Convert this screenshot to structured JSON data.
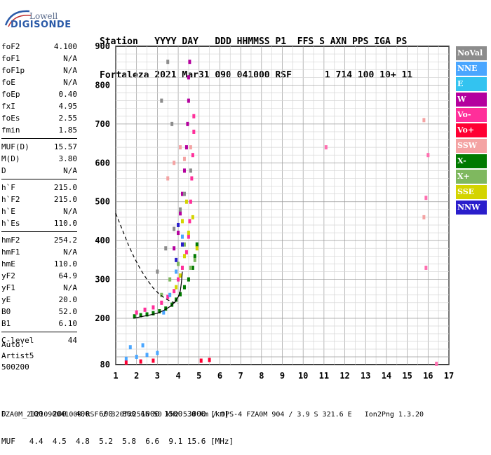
{
  "logo": {
    "line1": "Lowell",
    "line2": "DIGISONDE"
  },
  "header": {
    "row1": "Station   YYYY DAY   DDD HHMMSS P1  FFS S AXN PPS IGA PS",
    "row2": "Fortaleza 2021 Mar31 090 041000 RSF      1 714 100 10+ 11"
  },
  "params": [
    [
      {
        "name": "foF2",
        "value": "4.100"
      },
      {
        "name": "foF1",
        "value": "N/A"
      },
      {
        "name": "foF1p",
        "value": "N/A"
      },
      {
        "name": "foE",
        "value": "N/A"
      },
      {
        "name": "foEp",
        "value": "0.40"
      },
      {
        "name": "fxI",
        "value": "4.95"
      },
      {
        "name": "foEs",
        "value": "2.55"
      },
      {
        "name": "fmin",
        "value": "1.85"
      }
    ],
    [
      {
        "name": "MUF(D)",
        "value": "15.57"
      },
      {
        "name": "M(D)",
        "value": "3.80"
      },
      {
        "name": "D",
        "value": "N/A"
      }
    ],
    [
      {
        "name": "h`F",
        "value": "215.0"
      },
      {
        "name": "h`F2",
        "value": "215.0"
      },
      {
        "name": "h`E",
        "value": "N/A"
      },
      {
        "name": "h`Es",
        "value": "110.0"
      }
    ],
    [
      {
        "name": "hmF2",
        "value": "254.2"
      },
      {
        "name": "hmF1",
        "value": "N/A"
      },
      {
        "name": "hmE",
        "value": "110.0"
      },
      {
        "name": "yF2",
        "value": "64.9"
      },
      {
        "name": "yF1",
        "value": "N/A"
      },
      {
        "name": "yE",
        "value": "20.0"
      },
      {
        "name": "B0",
        "value": "52.0"
      },
      {
        "name": "B1",
        "value": "6.10"
      }
    ],
    [
      {
        "name": "C-level",
        "value": "44"
      }
    ]
  ],
  "auto": {
    "line1": "Auto:",
    "line2": "Artist5",
    "line3": "500200"
  },
  "footer": {
    "d_row": "D     100  200  400  600  800 1000 1500 3000 [km]",
    "muf_row": "MUF   4.4  4.5  4.8  5.2  5.8  6.6  9.1 15.6 [MHz]",
    "info": "FZA0M_2021090041000.RSF / 320fx256h 50 kHz 5.0 km / DPS-4 FZA0M 904 / 3.9 S 321.6 E   Ion2Png 1.3.20"
  },
  "legend": [
    {
      "label": "NoVal",
      "color": "#8c8c8c"
    },
    {
      "label": "NNE",
      "color": "#4aa6ff"
    },
    {
      "label": "E",
      "color": "#33c3f0"
    },
    {
      "label": "W",
      "color": "#b4009e"
    },
    {
      "label": "Vo-",
      "color": "#ff2f9a"
    },
    {
      "label": "Vo+",
      "color": "#ff0033"
    },
    {
      "label": "SSW",
      "color": "#f4a3a3"
    },
    {
      "label": "X-",
      "color": "#007a00"
    },
    {
      "label": "X+",
      "color": "#7fb85f"
    },
    {
      "label": "SSE",
      "color": "#d4d400"
    },
    {
      "label": "NNW",
      "color": "#2a1ecb"
    }
  ],
  "chart_data": {
    "type": "scatter",
    "xlabel": "",
    "ylabel": "",
    "xlim": [
      1,
      17
    ],
    "ylim": [
      80,
      900
    ],
    "x_ticks": [
      1,
      2,
      3,
      4,
      5,
      6,
      7,
      8,
      9,
      10,
      11,
      12,
      13,
      14,
      15,
      16,
      17
    ],
    "y_ticks": [
      80,
      200,
      300,
      400,
      500,
      600,
      700,
      800,
      900
    ],
    "grid": true,
    "series": [
      {
        "name": "X-",
        "points": [
          [
            1.9,
            205
          ],
          [
            2.2,
            208
          ],
          [
            2.5,
            210
          ],
          [
            2.8,
            213
          ],
          [
            3.1,
            218
          ],
          [
            3.4,
            225
          ],
          [
            3.7,
            235
          ],
          [
            3.9,
            248
          ],
          [
            4.1,
            262
          ],
          [
            4.3,
            280
          ],
          [
            4.5,
            300
          ],
          [
            4.7,
            330
          ],
          [
            4.8,
            360
          ],
          [
            4.9,
            390
          ]
        ]
      },
      {
        "name": "Vo-",
        "points": [
          [
            2.0,
            215
          ],
          [
            2.4,
            222
          ],
          [
            2.8,
            228
          ],
          [
            3.2,
            240
          ],
          [
            3.5,
            255
          ],
          [
            3.8,
            270
          ],
          [
            4.0,
            300
          ],
          [
            4.2,
            330
          ],
          [
            4.4,
            370
          ],
          [
            4.5,
            410
          ],
          [
            4.55,
            450
          ],
          [
            4.6,
            500
          ],
          [
            4.65,
            560
          ],
          [
            4.7,
            620
          ],
          [
            4.75,
            680
          ],
          [
            4.75,
            720
          ]
        ]
      },
      {
        "name": "W",
        "points": [
          [
            3.8,
            380
          ],
          [
            4.0,
            420
          ],
          [
            4.1,
            470
          ],
          [
            4.2,
            520
          ],
          [
            4.3,
            580
          ],
          [
            4.4,
            640
          ],
          [
            4.45,
            700
          ],
          [
            4.5,
            760
          ],
          [
            4.5,
            820
          ],
          [
            4.55,
            860
          ]
        ]
      },
      {
        "name": "NNE",
        "points": [
          [
            1.5,
            95
          ],
          [
            2.0,
            100
          ],
          [
            2.5,
            105
          ],
          [
            3.0,
            110
          ],
          [
            1.7,
            125
          ],
          [
            2.3,
            130
          ],
          [
            3.3,
            215
          ],
          [
            3.6,
            260
          ],
          [
            3.9,
            320
          ],
          [
            4.2,
            410
          ]
        ]
      },
      {
        "name": "SSE",
        "points": [
          [
            3.9,
            280
          ],
          [
            4.1,
            310
          ],
          [
            4.3,
            360
          ],
          [
            4.5,
            420
          ],
          [
            4.7,
            460
          ],
          [
            4.9,
            380
          ],
          [
            4.2,
            450
          ],
          [
            4.4,
            500
          ]
        ]
      },
      {
        "name": "X+",
        "points": [
          [
            3.2,
            260
          ],
          [
            3.6,
            300
          ],
          [
            4.0,
            340
          ],
          [
            4.3,
            390
          ],
          [
            4.6,
            330
          ],
          [
            4.8,
            350
          ]
        ]
      },
      {
        "name": "SSW",
        "points": [
          [
            3.5,
            560
          ],
          [
            3.8,
            600
          ],
          [
            4.1,
            640
          ],
          [
            4.3,
            610
          ],
          [
            4.6,
            640
          ],
          [
            15.8,
            460
          ],
          [
            15.8,
            710
          ]
        ]
      },
      {
        "name": "NoVal",
        "points": [
          [
            3.0,
            320
          ],
          [
            3.4,
            380
          ],
          [
            3.8,
            430
          ],
          [
            4.1,
            480
          ],
          [
            4.3,
            520
          ],
          [
            4.6,
            580
          ],
          [
            3.7,
            700
          ],
          [
            3.2,
            760
          ],
          [
            3.5,
            860
          ]
        ]
      },
      {
        "name": "NNW",
        "points": [
          [
            3.9,
            350
          ],
          [
            4.2,
            390
          ],
          [
            4.0,
            440
          ]
        ]
      },
      {
        "name": "Vo+",
        "points": [
          [
            1.5,
            85
          ],
          [
            2.2,
            88
          ],
          [
            2.8,
            90
          ],
          [
            5.1,
            90
          ],
          [
            5.5,
            92
          ]
        ]
      },
      {
        "name": "Vo-extra",
        "points": [
          [
            15.9,
            330
          ],
          [
            15.9,
            510
          ],
          [
            16.0,
            620
          ],
          [
            11.1,
            640
          ],
          [
            16.4,
            82
          ]
        ]
      }
    ],
    "curves": [
      {
        "name": "profile",
        "style": "solid",
        "points": [
          [
            1.85,
            200
          ],
          [
            2.2,
            204
          ],
          [
            2.6,
            208
          ],
          [
            3.0,
            213
          ],
          [
            3.3,
            220
          ],
          [
            3.6,
            230
          ],
          [
            3.85,
            242
          ],
          [
            4.0,
            255
          ],
          [
            4.1,
            270
          ],
          [
            4.15,
            290
          ],
          [
            4.2,
            320
          ]
        ]
      },
      {
        "name": "muf-curve",
        "style": "dashed",
        "points": [
          [
            1.0,
            470
          ],
          [
            1.3,
            430
          ],
          [
            1.6,
            390
          ],
          [
            1.9,
            355
          ],
          [
            2.2,
            325
          ],
          [
            2.5,
            300
          ],
          [
            2.8,
            278
          ],
          [
            3.1,
            262
          ],
          [
            3.4,
            250
          ],
          [
            3.7,
            242
          ],
          [
            4.0,
            238
          ]
        ]
      }
    ]
  }
}
